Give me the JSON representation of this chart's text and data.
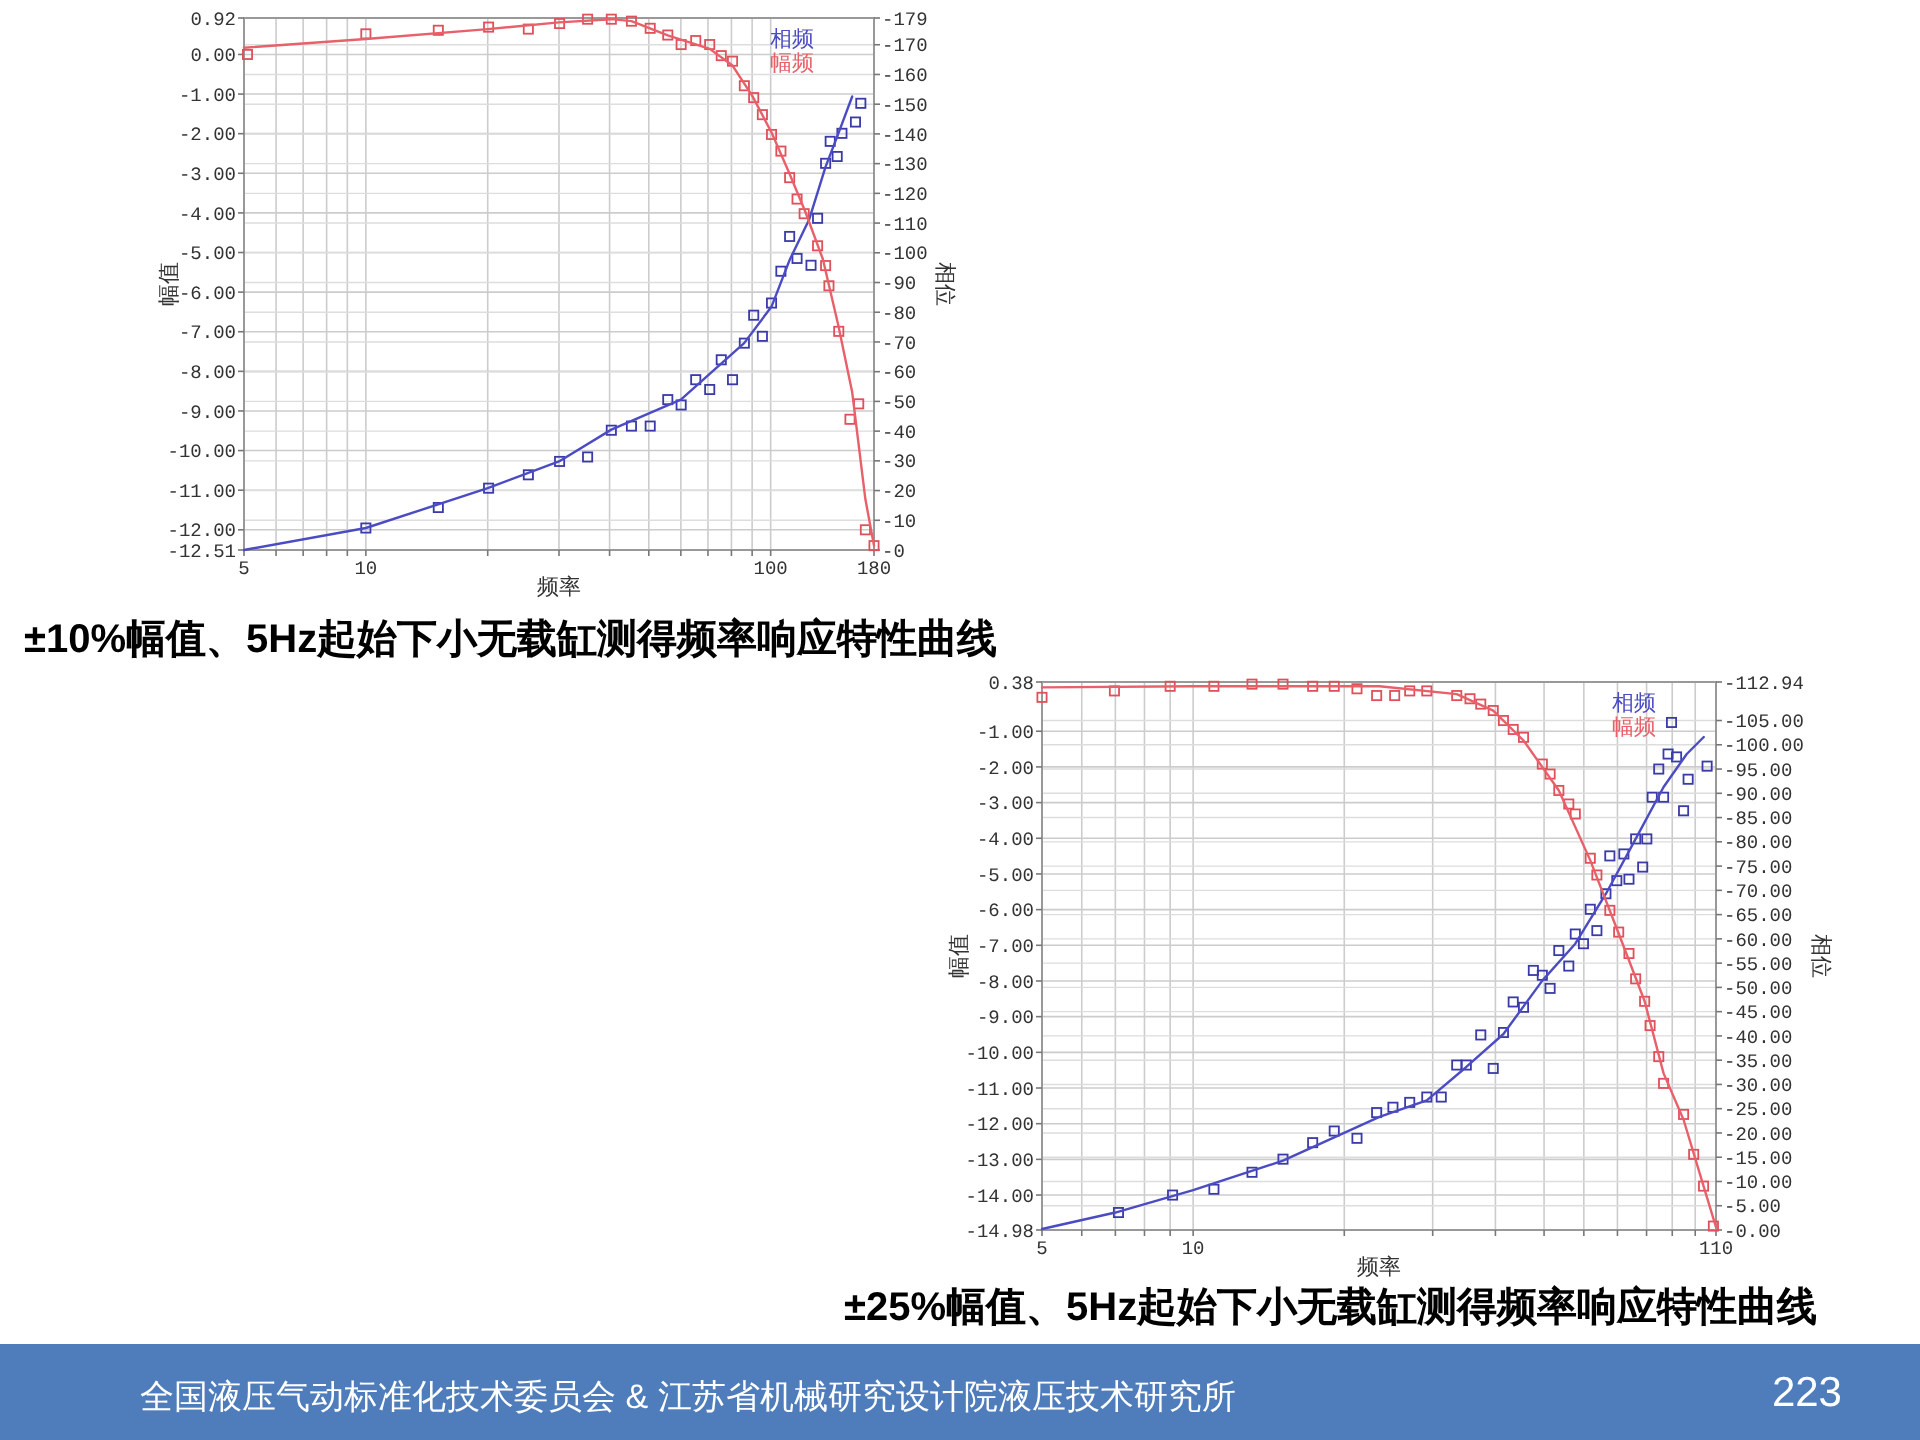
{
  "chart_data": [
    {
      "type": "scatter",
      "title": "±10%幅值、5Hz起始下小无载缸测得频率响应特性曲线",
      "xlabel": "频率",
      "ylabel": "幅值",
      "y2label": "相位",
      "log": "x",
      "grid": true,
      "legend": "top right",
      "xlim": [
        5,
        180
      ],
      "xticks": [
        5,
        {
          "value": 6,
          "label": null
        },
        {
          "value": 7,
          "label": null
        },
        {
          "value": 8,
          "label": null
        },
        {
          "value": 9,
          "label": null
        },
        10,
        {
          "value": 20,
          "label": null
        },
        {
          "value": 30,
          "label": null
        },
        {
          "value": 40,
          "label": null
        },
        {
          "value": 50,
          "label": null
        },
        {
          "value": 60,
          "label": null
        },
        {
          "value": 70,
          "label": null
        },
        {
          "value": 80,
          "label": null
        },
        {
          "value": 90,
          "label": null
        },
        100,
        180
      ],
      "ylim": [
        -12.51,
        0.92
      ],
      "yticks": [
        0.92,
        {
          "value": 0,
          "label": "0.00"
        },
        {
          "value": -1,
          "label": "-1.00"
        },
        {
          "value": -2,
          "label": "-2.00"
        },
        {
          "value": -3,
          "label": "-3.00"
        },
        {
          "value": -4,
          "label": "-4.00"
        },
        {
          "value": -5,
          "label": "-5.00"
        },
        {
          "value": -6,
          "label": "-6.00"
        },
        {
          "value": -7,
          "label": "-7.00"
        },
        {
          "value": -8,
          "label": "-8.00"
        },
        {
          "value": -9,
          "label": "-9.00"
        },
        {
          "value": -10,
          "label": "-10.00"
        },
        {
          "value": -11,
          "label": "-11.00"
        },
        {
          "value": -12,
          "label": "-12.00"
        },
        -12.51
      ],
      "y2lim": [
        0,
        -179
      ],
      "y2ticks": [
        -179,
        -170,
        -160,
        -150,
        -140,
        -130,
        -120,
        -110,
        -100,
        -90,
        -80,
        -70,
        -60,
        -50,
        -40,
        -30,
        -20,
        -10,
        {
          "value": 0,
          "label": "-0"
        }
      ],
      "series": [
        {
          "axis": "y2",
          "marker": "square",
          "color": "#3a3aa8",
          "x": [
            10,
            15.1,
            20.1,
            25.2,
            30.1,
            35.3,
            40.4,
            45.3,
            50.4,
            55.7,
            60.1,
            65.3,
            70.7,
            75.5,
            80.5,
            86.1,
            90.8,
            95.4,
            100.5,
            106,
            111.4,
            116.2,
            125.8,
            130.6,
            136.7,
            140.3,
            146,
            150,
            162,
            167
          ],
          "values": [
            -7.4,
            -14.3,
            -20.8,
            -25.3,
            -29.8,
            -31.3,
            -40.3,
            -41.7,
            -41.7,
            -50.6,
            -48.8,
            -57.3,
            -54.0,
            -64.0,
            -57.3,
            -69.6,
            -79.0,
            -71.9,
            -83.1,
            -93.8,
            -105.5,
            -98.1,
            -95.8,
            -111.6,
            -130.1,
            -137.5,
            -132.4,
            -140.2,
            -144.0,
            -150.3
          ]
        },
        {
          "type": "line",
          "axis": "y2",
          "name": "相频",
          "color": "#4b4bc4",
          "x": [
            5,
            10,
            20,
            30,
            40.4,
            60,
            86,
            100.5,
            111.4,
            124.4,
            136.7,
            147,
            159
          ],
          "values": [
            0,
            -7.4,
            -20.8,
            -29.8,
            -40.5,
            -50.6,
            -69.6,
            -81.9,
            -97.6,
            -111.1,
            -129,
            -140.2,
            -152.6
          ]
        },
        {
          "marker": "square",
          "color": "#e0505a",
          "x": [
            5.1,
            10,
            15.1,
            20.1,
            25.2,
            30.1,
            35.3,
            40.4,
            45.3,
            50.4,
            55.7,
            60.1,
            65.3,
            70.7,
            75.5,
            80.5,
            86.1,
            90.8,
            95.4,
            100.5,
            106,
            111.4,
            116.2,
            121,
            130.6,
            136.7,
            139.3,
            147.3,
            157,
            165,
            171.4,
            180
          ],
          "values": [
            0.0,
            0.52,
            0.61,
            0.69,
            0.64,
            0.78,
            0.89,
            0.89,
            0.84,
            0.66,
            0.49,
            0.25,
            0.35,
            0.25,
            -0.03,
            -0.17,
            -0.79,
            -1.09,
            -1.52,
            -2.02,
            -2.44,
            -3.11,
            -3.65,
            -4.02,
            -4.83,
            -5.33,
            -5.84,
            -6.99,
            -9.21,
            -8.82,
            -12.0,
            -12.4
          ]
        },
        {
          "type": "line",
          "name": "幅频",
          "color": "#e8606a",
          "x": [
            5,
            10,
            20,
            30,
            40.4,
            45.3,
            55.7,
            70.7,
            80.5,
            90,
            100.5,
            111,
            122,
            134.6,
            147,
            159,
            171.4,
            180
          ],
          "values": [
            0.17,
            0.39,
            0.64,
            0.81,
            0.89,
            0.84,
            0.48,
            0.14,
            -0.28,
            -1.04,
            -1.97,
            -2.98,
            -3.99,
            -5.17,
            -6.85,
            -8.53,
            -11.23,
            -12.4
          ]
        }
      ]
    },
    {
      "type": "scatter",
      "title": "±25%幅值、5Hz起始下小无载缸测得频率响应特性曲线",
      "xlabel": "频率",
      "ylabel": "幅值",
      "y2label": "相位",
      "log": "x",
      "grid": true,
      "legend": "top right",
      "xlim": [
        5,
        110
      ],
      "xticks": [
        5,
        {
          "value": 6,
          "label": null
        },
        {
          "value": 7,
          "label": null
        },
        {
          "value": 8,
          "label": null
        },
        {
          "value": 9,
          "label": null
        },
        10,
        {
          "value": 20,
          "label": null
        },
        {
          "value": 30,
          "label": null
        },
        {
          "value": 40,
          "label": null
        },
        {
          "value": 50,
          "label": null
        },
        {
          "value": 60,
          "label": null
        },
        {
          "value": 70,
          "label": null
        },
        {
          "value": 80,
          "label": null
        },
        {
          "value": 90,
          "label": null
        },
        {
          "value": 100,
          "label": null
        },
        110
      ],
      "ylim": [
        -14.98,
        0.38
      ],
      "yticks": [
        0.38,
        {
          "value": -1,
          "label": "-1.00"
        },
        {
          "value": -2,
          "label": "-2.00"
        },
        {
          "value": -3,
          "label": "-3.00"
        },
        {
          "value": -4,
          "label": "-4.00"
        },
        {
          "value": -5,
          "label": "-5.00"
        },
        {
          "value": -6,
          "label": "-6.00"
        },
        {
          "value": -7,
          "label": "-7.00"
        },
        {
          "value": -8,
          "label": "-8.00"
        },
        {
          "value": -9,
          "label": "-9.00"
        },
        {
          "value": -10,
          "label": "-10.00"
        },
        {
          "value": -11,
          "label": "-11.00"
        },
        {
          "value": -12,
          "label": "-12.00"
        },
        {
          "value": -13,
          "label": "-13.00"
        },
        {
          "value": -14,
          "label": "-14.00"
        },
        -14.98
      ],
      "y2lim": [
        0,
        -112.94
      ],
      "y2ticks": [
        -112.94,
        {
          "value": -105,
          "label": "-105.00"
        },
        {
          "value": -100,
          "label": "-100.00"
        },
        {
          "value": -95,
          "label": "-95.00"
        },
        {
          "value": -90,
          "label": "-90.00"
        },
        {
          "value": -85,
          "label": "-85.00"
        },
        {
          "value": -80,
          "label": "-80.00"
        },
        {
          "value": -75,
          "label": "-75.00"
        },
        {
          "value": -70,
          "label": "-70.00"
        },
        {
          "value": -65,
          "label": "-65.00"
        },
        {
          "value": -60,
          "label": "-60.00"
        },
        {
          "value": -55,
          "label": "-55.00"
        },
        {
          "value": -50,
          "label": "-50.00"
        },
        {
          "value": -45,
          "label": "-45.00"
        },
        {
          "value": -40,
          "label": "-40.00"
        },
        {
          "value": -35,
          "label": "-35.00"
        },
        {
          "value": -30,
          "label": "-30.00"
        },
        {
          "value": -25,
          "label": "-25.00"
        },
        {
          "value": -20,
          "label": "-20.00"
        },
        {
          "value": -15,
          "label": "-15.00"
        },
        {
          "value": -10,
          "label": "-10.00"
        },
        {
          "value": -5,
          "label": "-5.00"
        },
        {
          "value": 0,
          "label": "-0.00"
        }
      ],
      "annotations": [
        "全国液压气动标准化技术委员会 & 江苏省机械研究设计院液压技术研究所",
        "223"
      ],
      "series": [
        {
          "axis": "y2",
          "marker": "square",
          "color": "#3a3aa8",
          "x": [
            7.1,
            9.1,
            11.0,
            13.1,
            15.1,
            17.3,
            19.1,
            21.2,
            23.2,
            25,
            27.0,
            29.2,
            31.2,
            33.5,
            35,
            37.4,
            39.6,
            41.5,
            43.4,
            45.5,
            47.6,
            49.6,
            51.4,
            53.5,
            56.0,
            57.7,
            59.9,
            61.8,
            63.7,
            66.4,
            67.6,
            69.8,
            72.1,
            73.8,
            76.1,
            78.6,
            80.1,
            82.1,
            84.6,
            86.5,
            88.3,
            89.7,
            91.8,
            94.8,
            96.8,
            105.6
          ],
          "values": [
            -3.6,
            -7.2,
            -8.4,
            -11.9,
            -14.6,
            -18.0,
            -20.4,
            -18.9,
            -24.2,
            -25.3,
            -26.3,
            -27.4,
            -27.4,
            -34.0,
            -34.0,
            -40.2,
            -33.3,
            -40.7,
            -47.0,
            -45.9,
            -53.5,
            -52.5,
            -49.8,
            -57.6,
            -54.4,
            -61.0,
            -59.0,
            -66.1,
            -61.7,
            -69.3,
            -77.1,
            -72.0,
            -77.5,
            -72.3,
            -80.6,
            -74.8,
            -80.6,
            -89.2,
            -95.0,
            -89.2,
            -98.1,
            -104.6,
            -97.5,
            -86.4,
            -92.9,
            -95.6
          ]
        },
        {
          "type": "line",
          "axis": "y2",
          "name": "相频",
          "color": "#4b4bc4",
          "x": [
            5,
            7,
            10,
            15.1,
            23.5,
            29.2,
            35,
            41.5,
            49.6,
            57.7,
            66.4,
            76.1,
            86.5,
            96.2,
            104
          ],
          "values": [
            -0.2,
            -3.6,
            -8.2,
            -14.3,
            -23.3,
            -26.7,
            -33.6,
            -40.4,
            -51.4,
            -59.0,
            -69.3,
            -80.6,
            -91.3,
            -98.1,
            -101.6
          ]
        },
        {
          "marker": "square",
          "color": "#e0505a",
          "x": [
            5,
            6.97,
            9.0,
            11.0,
            13.1,
            15.1,
            17.3,
            19.1,
            21.2,
            23.2,
            25.2,
            27.0,
            29.2,
            33.5,
            35.6,
            37.4,
            39.6,
            41.5,
            43.4,
            45.5,
            49.6,
            51.4,
            53.5,
            56.0,
            57.7,
            61.8,
            63.7,
            67.6,
            70.4,
            73.8,
            76.1,
            79.3,
            81.3,
            84.6,
            86.5,
            94.8,
            99.3,
            103.9,
            108.7
          ],
          "values": [
            -0.05,
            0.13,
            0.26,
            0.26,
            0.32,
            0.32,
            0.26,
            0.26,
            0.19,
            0.0,
            0.0,
            0.13,
            0.13,
            0.0,
            -0.09,
            -0.24,
            -0.42,
            -0.7,
            -0.95,
            -1.17,
            -1.92,
            -2.2,
            -2.66,
            -3.04,
            -3.32,
            -4.56,
            -5.03,
            -6.02,
            -6.63,
            -7.23,
            -7.94,
            -8.57,
            -9.25,
            -10.12,
            -10.87,
            -11.74,
            -12.86,
            -13.75,
            -14.87
          ]
        },
        {
          "type": "line",
          "name": "幅频",
          "color": "#e8606a",
          "x": [
            5,
            10,
            20,
            23.5,
            33.5,
            39.6,
            45.5,
            53.5,
            61.8,
            70.4,
            79.3,
            86.5,
            94.8,
            103.9,
            110
          ],
          "values": [
            0.23,
            0.26,
            0.26,
            0.26,
            0.04,
            -0.42,
            -1.26,
            -2.66,
            -4.62,
            -6.67,
            -8.57,
            -10.59,
            -11.89,
            -13.75,
            -14.9
          ]
        }
      ]
    }
  ]
}
